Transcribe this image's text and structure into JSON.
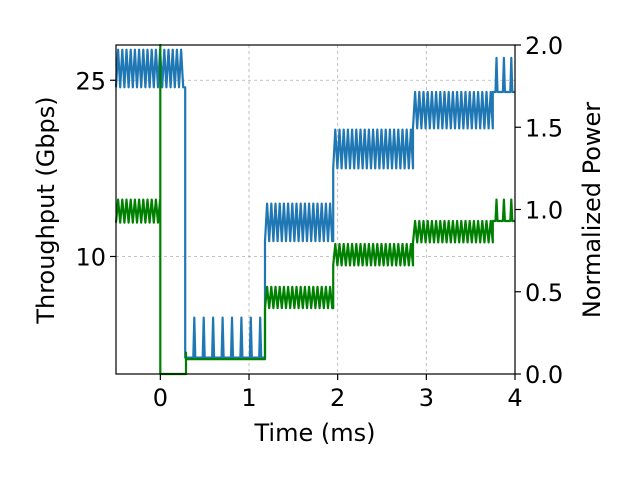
{
  "chart_data": {
    "type": "line",
    "xlabel": "Time (ms)",
    "ylabel_left": "Throughput (Gbps)",
    "ylabel_right": "Normalized Power",
    "xlim": [
      -0.5,
      4
    ],
    "ylim_left": [
      0,
      28
    ],
    "ylim_right": [
      0,
      2
    ],
    "xticks": [
      0,
      1,
      2,
      3,
      4
    ],
    "yticks_left": [
      10,
      25
    ],
    "yticks_right": [
      0.0,
      0.5,
      1.0,
      1.5,
      2.0
    ],
    "xtick_labels": [
      "0",
      "1",
      "2",
      "3",
      "4"
    ],
    "ytick_left_labels": [
      "10",
      "25"
    ],
    "ytick_right_labels": [
      "0.0",
      "0.5",
      "1.0",
      "1.5",
      "2.0"
    ],
    "grid": true,
    "colors": {
      "throughput": "#1f77b4",
      "power": "#008000"
    },
    "series": [
      {
        "axis": "left",
        "segments": [
          {
            "x0": -0.5,
            "x1": 0.28,
            "low": 24.4,
            "high": 27.6,
            "osc": true
          },
          {
            "x0": 0.28,
            "x1": 0.33,
            "low": 1.4,
            "high": 24.4,
            "osc": false
          },
          {
            "x0": 0.33,
            "x1": 1.18,
            "low": 1.4,
            "high": 4.8,
            "osc": "spikes"
          },
          {
            "x0": 1.18,
            "x1": 1.95,
            "low": 11.3,
            "high": 14.5,
            "osc": true
          },
          {
            "x0": 1.95,
            "x1": 2.85,
            "low": 17.5,
            "high": 20.8,
            "osc": true
          },
          {
            "x0": 2.85,
            "x1": 3.75,
            "low": 20.9,
            "high": 24.0,
            "osc": true
          },
          {
            "x0": 3.75,
            "x1": 4.0,
            "low": 24.0,
            "high": 26.9,
            "osc": "spikes"
          }
        ]
      },
      {
        "axis": "right",
        "segments": [
          {
            "x0": -0.5,
            "x1": 0.0,
            "low": 0.92,
            "high": 1.06,
            "osc": true
          },
          {
            "x0": 0.0,
            "x1": 0.05,
            "low": 0.0,
            "high": 2.0,
            "osc": false
          },
          {
            "x0": 0.05,
            "x1": 0.29,
            "low": 0.0,
            "high": 0.0,
            "osc": false
          },
          {
            "x0": 0.29,
            "x1": 1.18,
            "low": 0.09,
            "high": 0.13,
            "osc": false
          },
          {
            "x0": 1.18,
            "x1": 1.95,
            "low": 0.4,
            "high": 0.53,
            "osc": true
          },
          {
            "x0": 1.95,
            "x1": 2.85,
            "low": 0.66,
            "high": 0.79,
            "osc": true
          },
          {
            "x0": 2.85,
            "x1": 3.75,
            "low": 0.8,
            "high": 0.93,
            "osc": true
          },
          {
            "x0": 3.75,
            "x1": 4.0,
            "low": 0.93,
            "high": 1.06,
            "osc": "spikes"
          }
        ]
      }
    ]
  }
}
